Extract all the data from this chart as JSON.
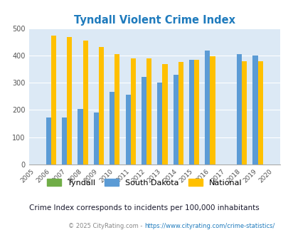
{
  "title": "Tyndall Violent Crime Index",
  "years": [
    2005,
    2006,
    2007,
    2008,
    2009,
    2010,
    2011,
    2012,
    2013,
    2014,
    2015,
    2016,
    2017,
    2018,
    2019,
    2020
  ],
  "tyndall": [
    0,
    0,
    0,
    0,
    0,
    0,
    0,
    0,
    0,
    0,
    0,
    0,
    0,
    0,
    0,
    0
  ],
  "south_dakota": [
    0,
    172,
    172,
    205,
    190,
    267,
    257,
    321,
    300,
    328,
    384,
    417,
    0,
    404,
    400,
    0
  ],
  "national": [
    0,
    474,
    467,
    455,
    432,
    405,
    389,
    388,
    368,
    376,
    384,
    397,
    0,
    380,
    379,
    0
  ],
  "bar_width": 0.32,
  "sd_color": "#5b9bd5",
  "national_color": "#ffc000",
  "tyndall_color": "#70ad47",
  "bg_color": "#dce9f5",
  "ylim": [
    0,
    500
  ],
  "yticks": [
    0,
    100,
    200,
    300,
    400,
    500
  ],
  "subtitle": "Crime Index corresponds to incidents per 100,000 inhabitants",
  "footer_text": "© 2025 CityRating.com - ",
  "footer_link": "https://www.cityrating.com/crime-statistics/",
  "title_color": "#1f7bbd",
  "subtitle_color": "#1a1a2e",
  "footer_color": "#888888",
  "footer_link_color": "#1f7bbd",
  "legend_labels": [
    "Tyndall",
    "South Dakota",
    "National"
  ],
  "xtick_years": [
    2005,
    2006,
    2007,
    2008,
    2009,
    2010,
    2011,
    2012,
    2013,
    2014,
    2015,
    2016,
    2017,
    2018,
    2019,
    2020
  ]
}
